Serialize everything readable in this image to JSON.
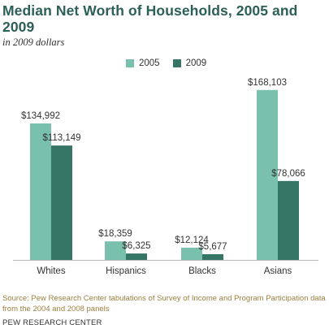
{
  "title": "Median Net Worth of Households, 2005 and 2009",
  "subtitle": "in 2009 dollars",
  "source": "Source: Pew Research Center tabulations of Survey of Income and Program Participation data from the 2004 and 2008 panels",
  "credit": "PEW RESEARCH CENTER",
  "colors": {
    "series_2005": "#79c1ad",
    "series_2009": "#357565",
    "title": "#2c5f57"
  },
  "chart_data": {
    "type": "bar",
    "categories": [
      "Whites",
      "Hispanics",
      "Blacks",
      "Asians"
    ],
    "series": [
      {
        "name": "2005",
        "values": [
          134992,
          18359,
          12124,
          168103
        ],
        "labels": [
          "$134,992",
          "$18,359",
          "$12,124",
          "$168,103"
        ]
      },
      {
        "name": "2009",
        "values": [
          113149,
          6325,
          5677,
          78066
        ],
        "labels": [
          "$113,149",
          "$6,325",
          "$5,677",
          "$78,066"
        ]
      }
    ],
    "title": "Median Net Worth of Households, 2005 and 2009",
    "subtitle": "in 2009 dollars",
    "xlabel": "",
    "ylabel": "",
    "ylim": [
      0,
      180000
    ],
    "grid": false,
    "legend_position": "top"
  }
}
